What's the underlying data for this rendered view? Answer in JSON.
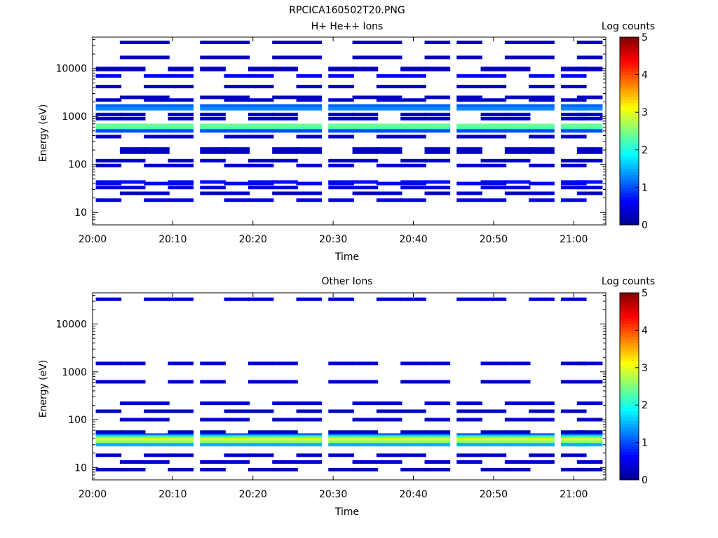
{
  "figure_title": "RPCICA160502T20.PNG",
  "colorscale": [
    "#00008f",
    "#0000ff",
    "#0080ff",
    "#00ffff",
    "#80ff80",
    "#ffff00",
    "#ff8000",
    "#ff0000",
    "#800000"
  ],
  "chart_data": [
    {
      "type": "heatmap",
      "title": "H+ He++ Ions",
      "xlabel": "Time",
      "ylabel": "Energy (eV)",
      "yscale": "log",
      "ylim": [
        5.5,
        45000
      ],
      "xlim_minutes": [
        0,
        64
      ],
      "x_ticks": [
        "20:00",
        "20:10",
        "20:20",
        "20:30",
        "20:40",
        "20:50",
        "21:00"
      ],
      "y_ticks": [
        "10",
        "100",
        "1000",
        "10000"
      ],
      "colorbar": {
        "label": "Log counts",
        "range": [
          0,
          5
        ],
        "ticks": [
          "0",
          "1",
          "2",
          "3",
          "4",
          "5"
        ]
      },
      "time_columns": [
        "20:02",
        "20:05",
        "20:08",
        "20:11",
        "20:15",
        "20:18",
        "20:21",
        "20:24",
        "20:27",
        "20:31",
        "20:34",
        "20:37",
        "20:40",
        "20:43",
        "20:47",
        "20:50",
        "20:53",
        "20:56",
        "21:00",
        "21:02"
      ],
      "cells": [
        {
          "e": 1650,
          "v": 1.1
        },
        {
          "e": 1450,
          "v": 1.3
        },
        {
          "e": 650,
          "v": 2.4
        },
        {
          "e": 560,
          "v": 2.2
        },
        {
          "e": 500,
          "v": 1.0
        },
        {
          "e": 43,
          "v": 0.7
        },
        {
          "e": 40,
          "v": 0.6
        },
        {
          "e": 17000,
          "v": 0.3
        },
        {
          "e": 10000,
          "v": 0.3
        },
        {
          "e": 4200,
          "v": 0.3
        },
        {
          "e": 2500,
          "v": 0.3
        },
        {
          "e": 900,
          "v": 0.3
        },
        {
          "e": 380,
          "v": 0.3
        },
        {
          "e": 180,
          "v": 0.3
        },
        {
          "e": 120,
          "v": 0.3
        },
        {
          "e": 95,
          "v": 0.3
        },
        {
          "e": 25,
          "v": 0.3
        },
        {
          "e": 9500,
          "v": 0.3
        },
        {
          "e": 7000,
          "v": 0.6
        },
        {
          "e": 35000,
          "v": 0.3
        },
        {
          "e": 1100,
          "v": 0.3
        },
        {
          "e": 2200,
          "v": 0.3
        },
        {
          "e": 210,
          "v": 0.3
        },
        {
          "e": 33,
          "v": 0.4
        },
        {
          "e": 18,
          "v": 0.5
        }
      ]
    },
    {
      "type": "heatmap",
      "title": "Other Ions",
      "xlabel": "Time",
      "ylabel": "Energy (eV)",
      "yscale": "log",
      "ylim": [
        5.5,
        45000
      ],
      "xlim_minutes": [
        0,
        64
      ],
      "x_ticks": [
        "20:00",
        "20:10",
        "20:20",
        "20:30",
        "20:40",
        "20:50",
        "21:00"
      ],
      "y_ticks": [
        "10",
        "100",
        "1000",
        "10000"
      ],
      "colorbar": {
        "label": "Log counts",
        "range": [
          0,
          5
        ],
        "ticks": [
          "0",
          "1",
          "2",
          "3",
          "4",
          "5"
        ]
      },
      "time_columns": [
        "20:02",
        "20:05",
        "20:08",
        "20:11",
        "20:15",
        "20:18",
        "20:21",
        "20:24",
        "20:27",
        "20:31",
        "20:34",
        "20:37",
        "20:40",
        "20:43",
        "20:47",
        "20:50",
        "20:53",
        "20:56",
        "21:00",
        "21:02"
      ],
      "cells": [
        {
          "e": 48,
          "v": 1.2
        },
        {
          "e": 43,
          "v": 2.2
        },
        {
          "e": 38,
          "v": 3.0
        },
        {
          "e": 34,
          "v": 2.6
        },
        {
          "e": 30,
          "v": 1.5
        },
        {
          "e": 620,
          "v": 0.3
        },
        {
          "e": 18,
          "v": 0.3
        },
        {
          "e": 13,
          "v": 0.3
        },
        {
          "e": 9,
          "v": 0.2
        },
        {
          "e": 150,
          "v": 0.3
        },
        {
          "e": 100,
          "v": 0.3
        },
        {
          "e": 1500,
          "v": 0.3
        },
        {
          "e": 33000,
          "v": 0.3
        },
        {
          "e": 220,
          "v": 0.3
        },
        {
          "e": 55,
          "v": 0.3
        }
      ]
    }
  ]
}
